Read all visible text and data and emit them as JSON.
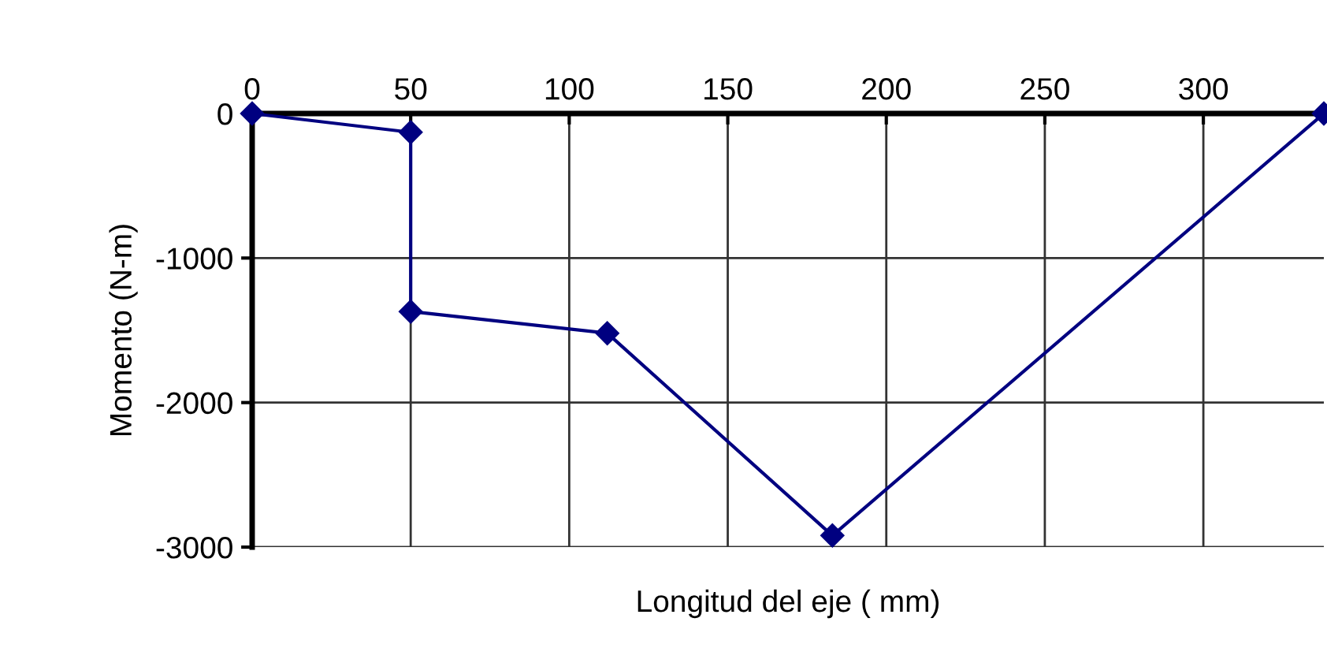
{
  "chart_data": {
    "type": "line",
    "xlabel": "Longitud del eje ( mm)",
    "ylabel": "Momento (N-m)",
    "x": [
      0,
      50,
      50,
      112,
      183,
      338
    ],
    "series": [
      {
        "color": "#000080",
        "values": [
          0,
          -130,
          -1370,
          -1520,
          -2920,
          0
        ]
      }
    ],
    "xlim": [
      0,
      338
    ],
    "xticks": [
      0,
      50,
      100,
      150,
      200,
      250,
      300
    ],
    "ylim": [
      -3000,
      0
    ],
    "yticks": [
      -3000,
      -2000,
      -1000,
      0
    ],
    "grid": true,
    "marker": "diamond",
    "line_style": "solid"
  }
}
